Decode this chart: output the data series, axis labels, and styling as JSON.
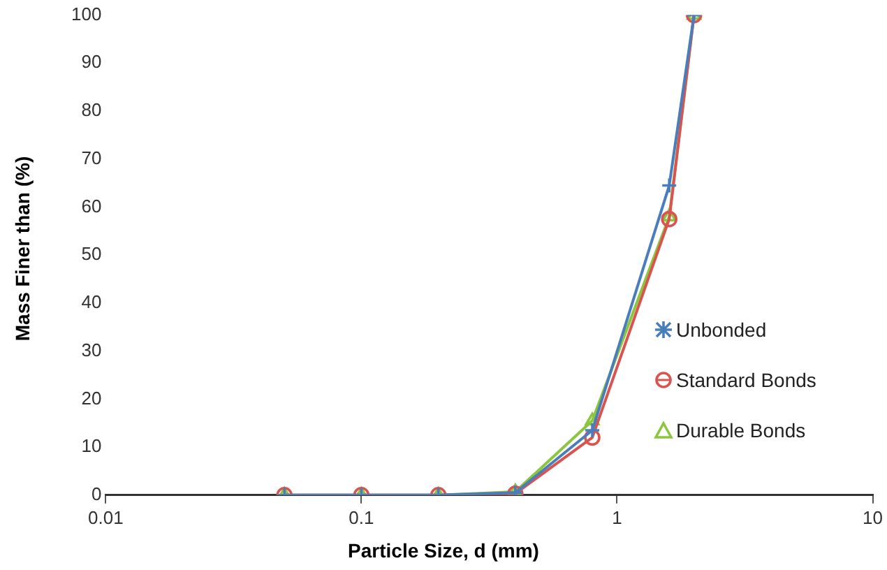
{
  "chart_data": {
    "type": "line",
    "xlabel": "Particle Size, d (mm)",
    "ylabel": "Mass Finer than (%)",
    "x": [
      0.05,
      0.1,
      0.2,
      0.4,
      0.8,
      1.6,
      2
    ],
    "series": [
      {
        "name": "Unbonded",
        "color": "#4a7ebb",
        "marker": "cross",
        "values": [
          0,
          0,
          0,
          0.5,
          13.5,
          64.5,
          100
        ]
      },
      {
        "name": "Standard Bonds",
        "color": "#d9534f",
        "marker": "circle",
        "values": [
          0,
          0,
          0,
          0.3,
          12,
          57.5,
          100
        ]
      },
      {
        "name": "Durable Bonds",
        "color": "#8cc63f",
        "marker": "triangle",
        "values": [
          0,
          0,
          0,
          0.7,
          15.5,
          58,
          100
        ]
      }
    ],
    "log": "x",
    "xlim": [
      0.01,
      10
    ],
    "xticks": [
      0.01,
      0.1,
      1,
      10
    ],
    "ylim": [
      0,
      100
    ],
    "yticks": [
      0,
      10,
      20,
      30,
      40,
      50,
      60,
      70,
      80,
      90,
      100
    ],
    "grid": false,
    "legend": "right"
  }
}
